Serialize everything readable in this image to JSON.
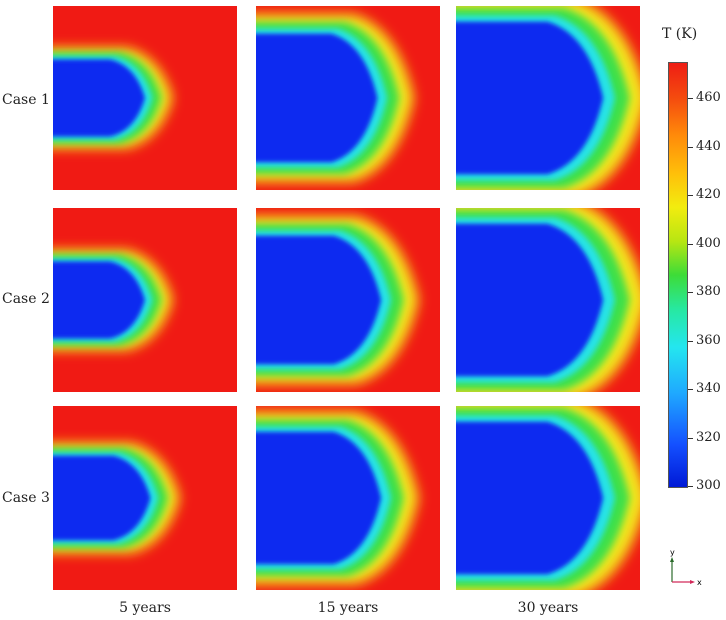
{
  "figure": {
    "rows": [
      {
        "label": "Case 1",
        "panels": [
          {
            "spread": 0.42,
            "tip": 0.5
          },
          {
            "spread": 0.7,
            "tip": 0.66
          },
          {
            "spread": 0.83,
            "tip": 0.8
          }
        ]
      },
      {
        "label": "Case 2",
        "panels": [
          {
            "spread": 0.42,
            "tip": 0.5
          },
          {
            "spread": 0.7,
            "tip": 0.68
          },
          {
            "spread": 0.83,
            "tip": 0.8
          }
        ]
      },
      {
        "label": "Case 3",
        "panels": [
          {
            "spread": 0.46,
            "tip": 0.53
          },
          {
            "spread": 0.72,
            "tip": 0.68
          },
          {
            "spread": 0.83,
            "tip": 0.8
          }
        ]
      }
    ],
    "columns": [
      "5 years",
      "15 years",
      "30 years"
    ],
    "colorbar": {
      "title": "T (K)",
      "min": 300,
      "max": 475,
      "ticks": [
        "460",
        "440",
        "420",
        "400",
        "380",
        "360",
        "340",
        "320",
        "300"
      ]
    },
    "axes_indicator": {
      "x_label": "x",
      "y_label": "y"
    },
    "colors": {
      "hot": "#f01a14",
      "cold": "#0a2cf0",
      "cyan": "#25e3e6",
      "green": "#3ee04a",
      "yellow": "#f4e61a"
    }
  }
}
